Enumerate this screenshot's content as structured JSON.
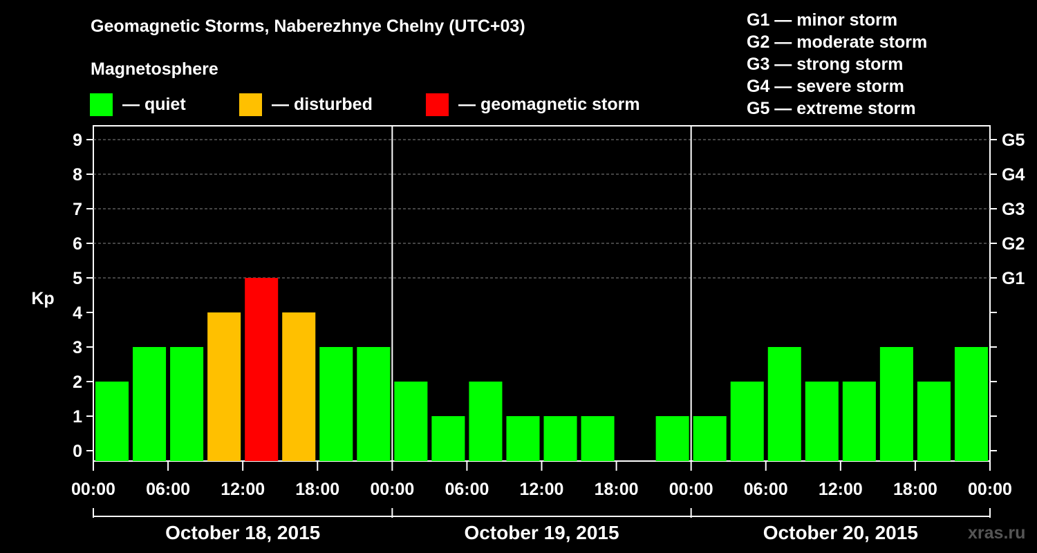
{
  "title": "Geomagnetic Storms, Naberezhnye Chelny (UTC+03)",
  "magnetosphere_label": "Magnetosphere",
  "legend": [
    {
      "label": "— quiet",
      "color": "#00ff00"
    },
    {
      "label": "— disturbed",
      "color": "#ffc000"
    },
    {
      "label": "— geomagnetic storm",
      "color": "#ff0000"
    }
  ],
  "storm_levels": [
    "G1 — minor storm",
    "G2 — moderate storm",
    "G3 — strong storm",
    "G4 — severe storm",
    "G5 — extreme storm"
  ],
  "watermark": "xras.ru",
  "chart_data": {
    "type": "bar",
    "title": "Geomagnetic Storms, Naberezhnye Chelny (UTC+03)",
    "ylabel": "Kp",
    "ylim": [
      0,
      9
    ],
    "yticks": [
      "0",
      "1",
      "2",
      "3",
      "4",
      "5",
      "6",
      "7",
      "8",
      "9"
    ],
    "right_ticks": [
      {
        "kp": 5,
        "label": "G1"
      },
      {
        "kp": 6,
        "label": "G2"
      },
      {
        "kp": 7,
        "label": "G3"
      },
      {
        "kp": 8,
        "label": "G4"
      },
      {
        "kp": 9,
        "label": "G5"
      }
    ],
    "xticks": [
      "00:00",
      "06:00",
      "12:00",
      "18:00",
      "00:00",
      "06:00",
      "12:00",
      "18:00",
      "00:00",
      "06:00",
      "12:00",
      "18:00",
      "00:00"
    ],
    "days": [
      "October 18, 2015",
      "October 19, 2015",
      "October 20, 2015"
    ],
    "interval_hours": 3,
    "values": [
      2,
      3,
      3,
      4,
      5,
      4,
      3,
      3,
      2,
      1,
      2,
      1,
      1,
      1,
      0,
      1,
      1,
      2,
      3,
      2,
      2,
      3,
      2,
      3
    ],
    "colors": {
      "quiet": "#00ff00",
      "disturbed": "#ffc000",
      "storm": "#ff0000"
    },
    "thresholds": {
      "disturbed": 4,
      "storm": 5
    }
  }
}
